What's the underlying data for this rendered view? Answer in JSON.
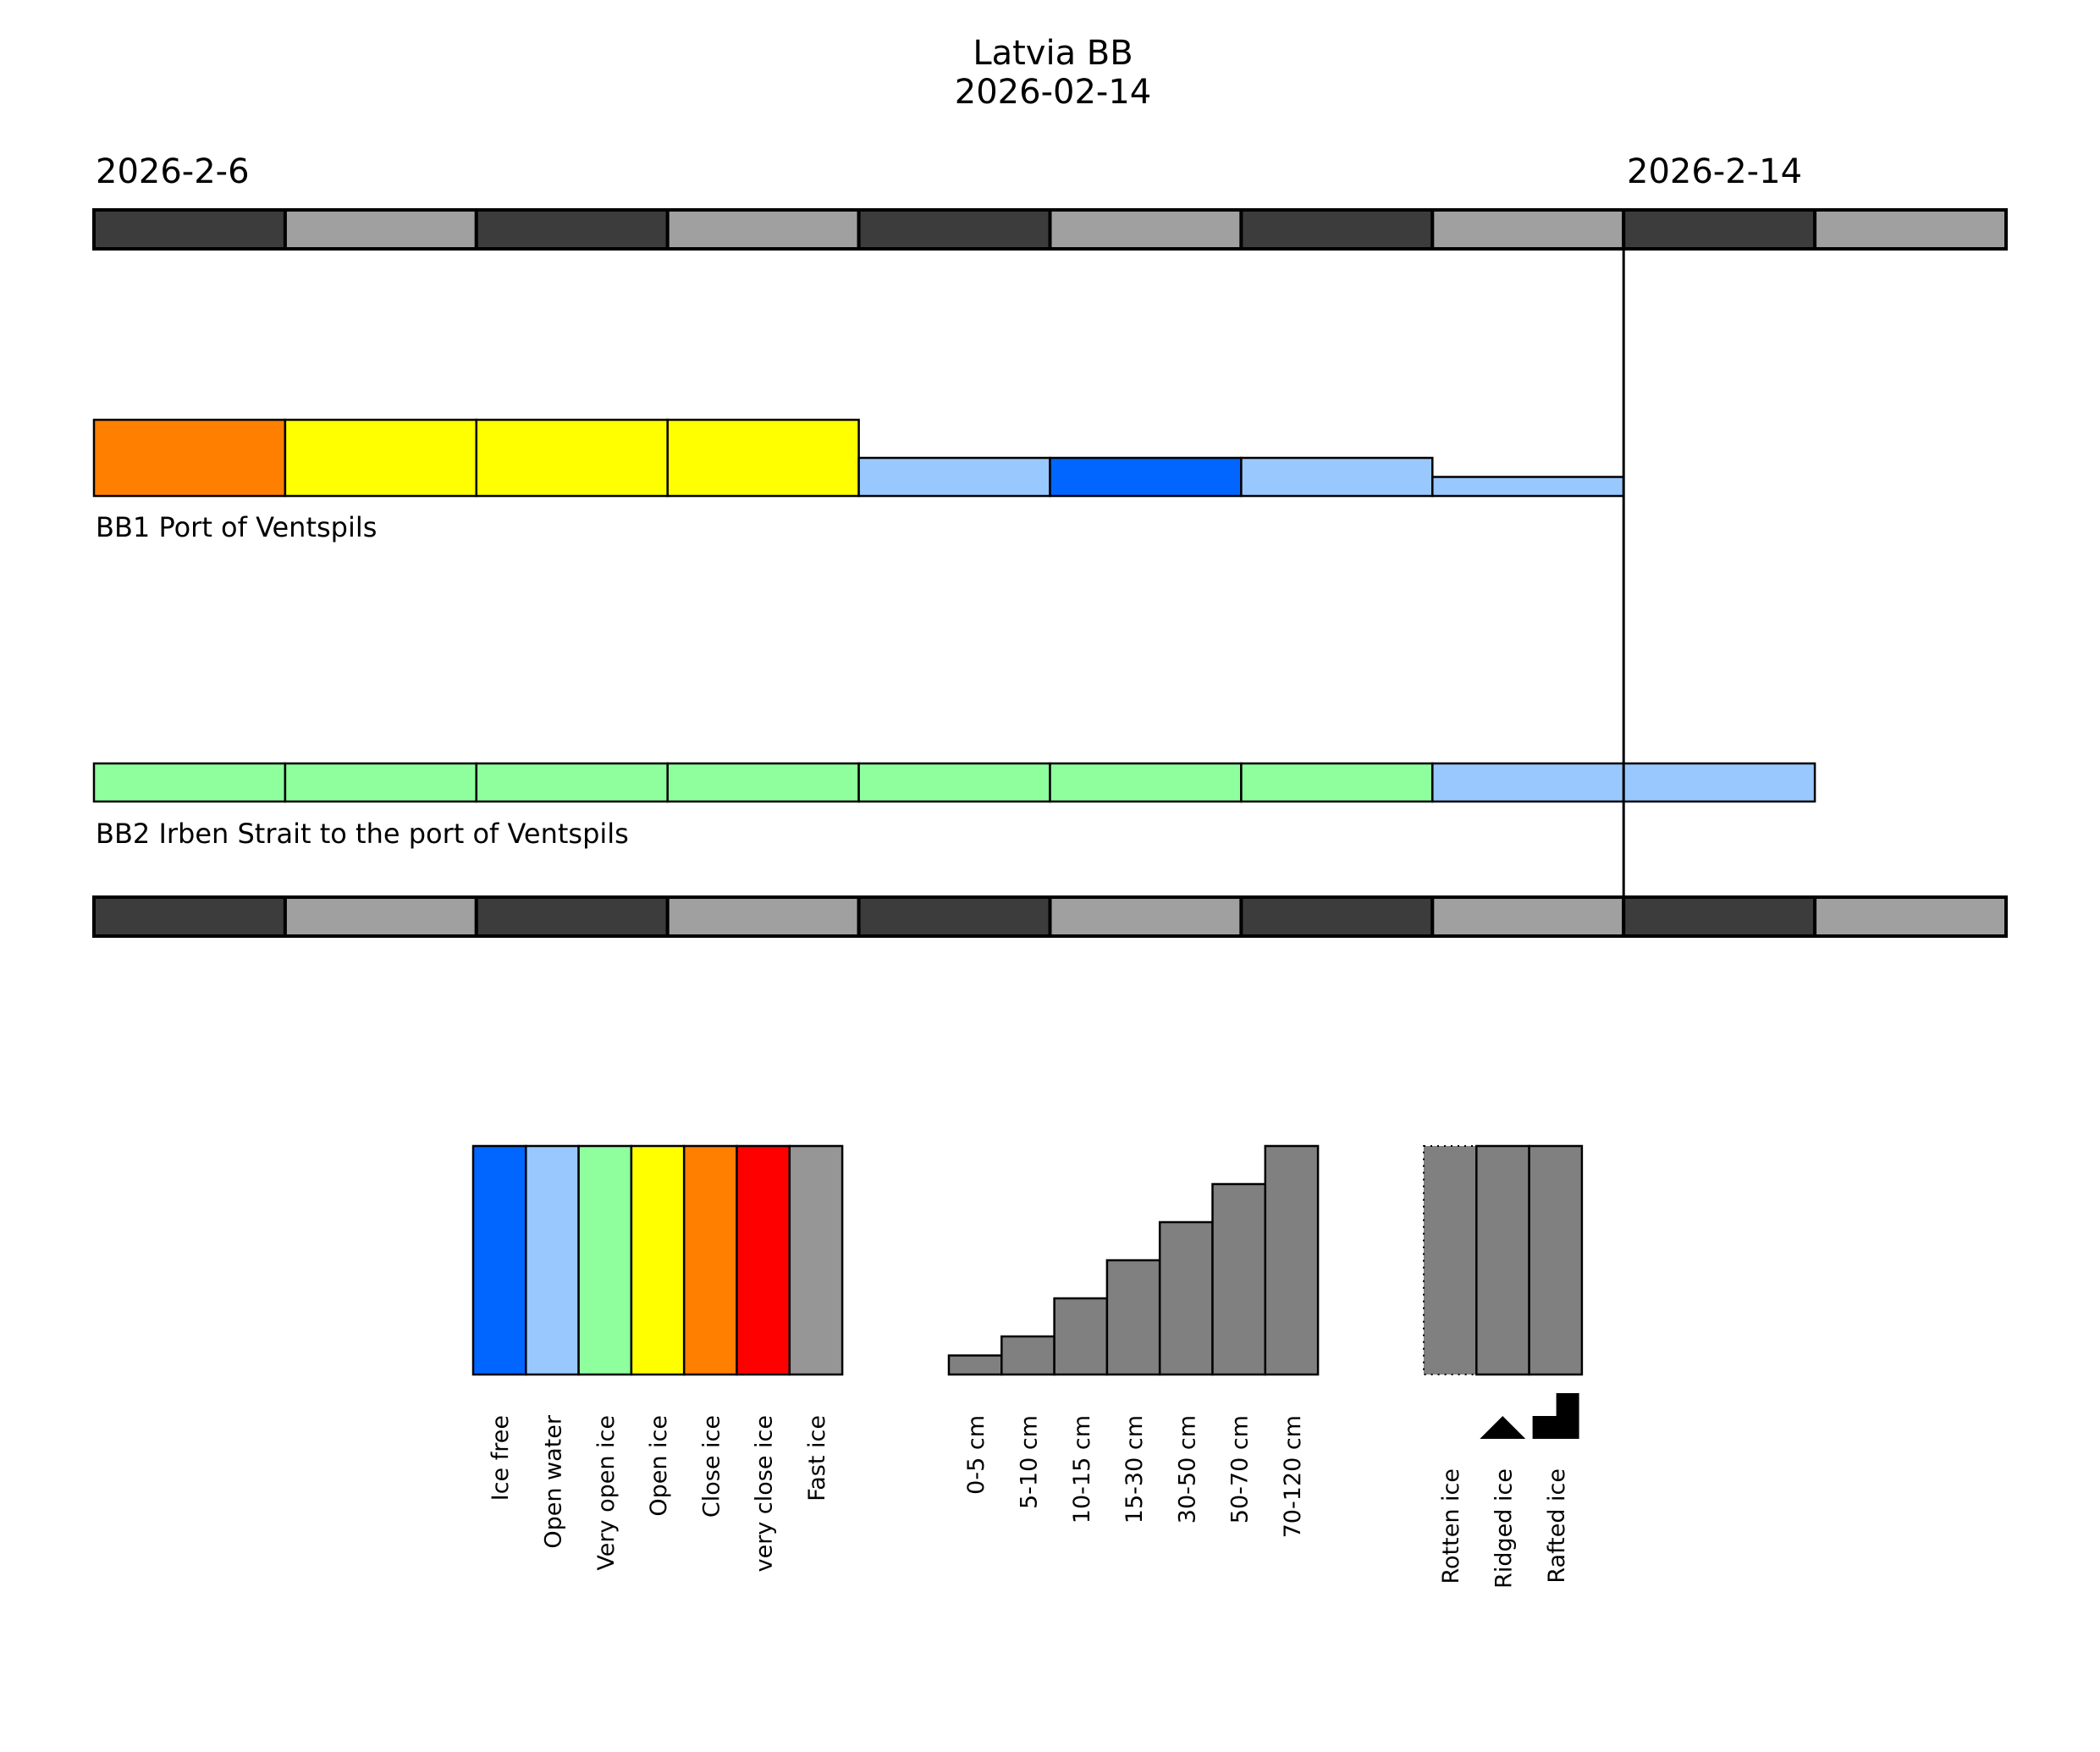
{
  "chart_data": {
    "type": "timeline-bar",
    "title": "Latvia BB",
    "subtitle": "2026-02-14",
    "start_date_label": "2026-2-6",
    "current_date_label": "2026-2-14",
    "timeline_segments": 10,
    "current_day_index": 8,
    "timeline_colors": [
      "#3c3c3c",
      "#a0a0a0"
    ],
    "rows": [
      {
        "label": "BB1 Port of Ventspils",
        "days": [
          {
            "condition": "Close ice",
            "height_level": 1.0
          },
          {
            "condition": "Open ice",
            "height_level": 1.0
          },
          {
            "condition": "Open ice",
            "height_level": 1.0
          },
          {
            "condition": "Open ice",
            "height_level": 1.0
          },
          {
            "condition": "Open water",
            "height_level": 0.5
          },
          {
            "condition": "Ice free",
            "height_level": 0.5
          },
          {
            "condition": "Open water",
            "height_level": 0.5
          },
          {
            "condition": "Open water",
            "height_level": 0.25
          }
        ]
      },
      {
        "label": "BB2 Irben Strait to the port of Ventspils",
        "days": [
          {
            "condition": "Very open ice",
            "height_level": 0.5
          },
          {
            "condition": "Very open ice",
            "height_level": 0.5
          },
          {
            "condition": "Very open ice",
            "height_level": 0.5
          },
          {
            "condition": "Very open ice",
            "height_level": 0.5
          },
          {
            "condition": "Very open ice",
            "height_level": 0.5
          },
          {
            "condition": "Very open ice",
            "height_level": 0.5
          },
          {
            "condition": "Very open ice",
            "height_level": 0.5
          },
          {
            "condition": "Open water",
            "height_level": 0.5
          },
          {
            "condition": "Open water",
            "height_level": 0.5
          }
        ]
      }
    ],
    "legend_conditions": [
      {
        "label": "Ice free",
        "color": "#0066ff"
      },
      {
        "label": "Open water",
        "color": "#99c8ff"
      },
      {
        "label": "Very open ice",
        "color": "#8fff9e"
      },
      {
        "label": "Open ice",
        "color": "#ffff00"
      },
      {
        "label": "Close ice",
        "color": "#ff7f00"
      },
      {
        "label": "very close ice",
        "color": "#ff0000"
      },
      {
        "label": "Fast ice",
        "color": "#969696"
      }
    ],
    "legend_thickness": [
      {
        "label": "0-5 cm",
        "level": 1
      },
      {
        "label": "5-10 cm",
        "level": 2
      },
      {
        "label": "10-15 cm",
        "level": 4
      },
      {
        "label": "15-30 cm",
        "level": 6
      },
      {
        "label": "30-50 cm",
        "level": 8
      },
      {
        "label": "50-70 cm",
        "level": 10
      },
      {
        "label": "70-120 cm",
        "level": 12
      }
    ],
    "legend_thickness_max_level": 12,
    "legend_ice_types": [
      {
        "label": "Rotten ice",
        "symbol": "dotted-border"
      },
      {
        "label": "Ridged ice",
        "symbol": "triangle-icon"
      },
      {
        "label": "Rafted ice",
        "symbol": "step-icon"
      }
    ],
    "legend_fill_color": "#808080"
  }
}
